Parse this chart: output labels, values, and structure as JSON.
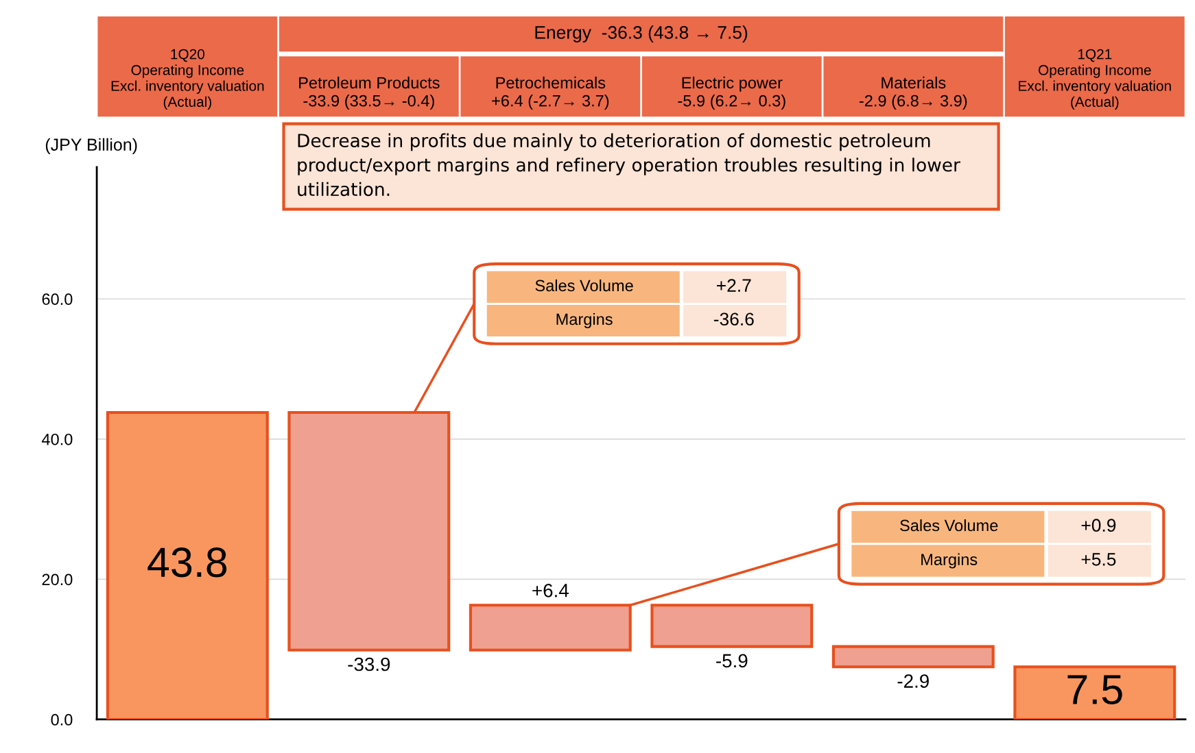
{
  "chart_data": {
    "type": "bar",
    "categories": [
      "1Q20\nOperating Income\nExcl. inventory valuation\n(Actual)",
      "Petroleum Products\n-33.9 (33.5→ -0.4)",
      "Petrochemicals\n+6.4 (-2.7→ 3.7)",
      "Electric power\n-5.9 (6.2→ 0.3)",
      "Materials\n-2.9 (6.8→ 3.9)",
      "1Q21\nOperating Income\nExcl. inventory valuation\n(Actual)"
    ],
    "values": [
      43.8,
      -33.9,
      6.4,
      -5.9,
      -2.9,
      7.5
    ],
    "base": [
      0,
      43.8,
      9.9,
      16.3,
      10.4,
      0
    ],
    "colors": [
      "#f9965f",
      "#f0a090",
      "#f0a090",
      "#f0a090",
      "#f0a090",
      "#f9965f"
    ],
    "value_labels": [
      "43.8",
      "-33.9",
      "+6.4",
      "-5.9",
      "-2.9",
      "7.5"
    ],
    "ylabel": "(JPY Billion)",
    "ylim": [
      0,
      78.8
    ],
    "yticks": [
      {
        "value": 0,
        "label": "0.0"
      },
      {
        "value": 20,
        "label": "20.0"
      },
      {
        "value": 40,
        "label": "40.0"
      },
      {
        "value": 60,
        "label": "60.0"
      }
    ],
    "grid": "y",
    "annotations": [
      "Energy  -36.3 (43.8 → 7.5)",
      "Decrease in profits due mainly to deterioration of domestic petroleum product/export margins and refinery operation troubles resulting in lower utilization.",
      "Sales Volume",
      "+2.7",
      "Margins",
      "-36.6",
      "Sales Volume",
      "+0.9",
      "Margins",
      "+5.5"
    ]
  }
}
